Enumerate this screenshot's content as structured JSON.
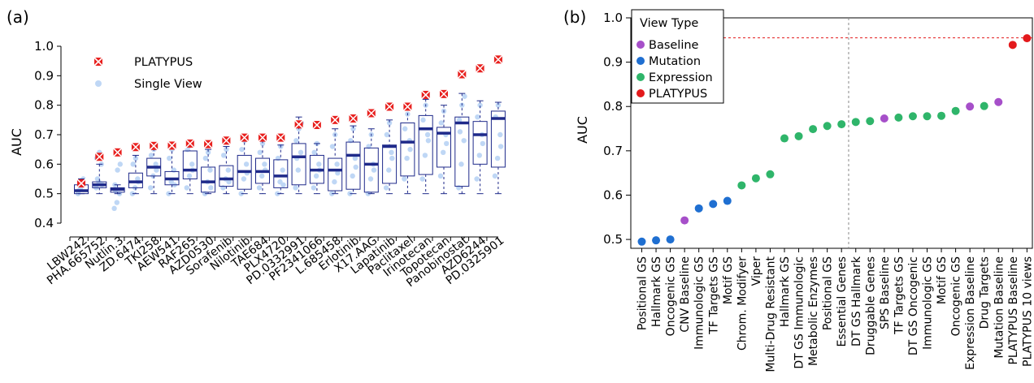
{
  "chart_data": [
    {
      "panel_label": "(a)",
      "type": "box",
      "ylabel": "AUC",
      "xlabel": "",
      "ylim": [
        0.4,
        1.0
      ],
      "yticks": [
        0.4,
        0.5,
        0.6,
        0.7,
        0.8,
        0.9,
        1.0
      ],
      "grid": false,
      "legend_position": "top-left",
      "legend": [
        {
          "label": "PLATYPUS",
          "color": "#e8201e",
          "marker": "x-square"
        },
        {
          "label": "Single View",
          "color": "#bfd7f5",
          "marker": "circle"
        }
      ],
      "box_color": "#1f2a8a",
      "categories": [
        "LBW242",
        "PHA.665752",
        "Nutlin.3",
        "ZD.6474",
        "TKI258",
        "AEW541",
        "RAF265",
        "AZD0530",
        "Sorafenib",
        "Nilotinib",
        "TAE684",
        "PLX4720",
        "PD.0332991",
        "PF2341066",
        "L.685458",
        "Erlotinib",
        "X17.AAG",
        "Lapatinib",
        "Paclitaxel",
        "Irinotecan",
        "Topotecan",
        "Panobinostat",
        "AZD6244",
        "PD.0325901"
      ],
      "platypus": [
        0.535,
        0.625,
        0.64,
        0.658,
        0.662,
        0.663,
        0.67,
        0.668,
        0.68,
        0.69,
        0.69,
        0.69,
        0.735,
        0.733,
        0.75,
        0.755,
        0.773,
        0.795,
        0.795,
        0.835,
        0.838,
        0.905,
        0.925,
        0.955
      ],
      "boxes": [
        {
          "min": 0.5,
          "q1": 0.5,
          "median": 0.51,
          "q3": 0.53,
          "max": 0.55
        },
        {
          "min": 0.5,
          "q1": 0.52,
          "median": 0.53,
          "q3": 0.54,
          "max": 0.6
        },
        {
          "min": 0.5,
          "q1": 0.505,
          "median": 0.515,
          "q3": 0.52,
          "max": 0.53
        },
        {
          "min": 0.5,
          "q1": 0.52,
          "median": 0.54,
          "q3": 0.57,
          "max": 0.63
        },
        {
          "min": 0.5,
          "q1": 0.56,
          "median": 0.59,
          "q3": 0.62,
          "max": 0.67
        },
        {
          "min": 0.5,
          "q1": 0.53,
          "median": 0.55,
          "q3": 0.575,
          "max": 0.66
        },
        {
          "min": 0.5,
          "q1": 0.55,
          "median": 0.58,
          "q3": 0.645,
          "max": 0.68
        },
        {
          "min": 0.5,
          "q1": 0.505,
          "median": 0.54,
          "q3": 0.59,
          "max": 0.65
        },
        {
          "min": 0.5,
          "q1": 0.525,
          "median": 0.55,
          "q3": 0.595,
          "max": 0.66
        },
        {
          "min": 0.5,
          "q1": 0.515,
          "median": 0.575,
          "q3": 0.63,
          "max": 0.69
        },
        {
          "min": 0.5,
          "q1": 0.535,
          "median": 0.575,
          "q3": 0.62,
          "max": 0.68
        },
        {
          "min": 0.5,
          "q1": 0.52,
          "median": 0.56,
          "q3": 0.615,
          "max": 0.665
        },
        {
          "min": 0.5,
          "q1": 0.53,
          "median": 0.625,
          "q3": 0.67,
          "max": 0.76
        },
        {
          "min": 0.5,
          "q1": 0.535,
          "median": 0.58,
          "q3": 0.63,
          "max": 0.67
        },
        {
          "min": 0.5,
          "q1": 0.51,
          "median": 0.58,
          "q3": 0.62,
          "max": 0.72
        },
        {
          "min": 0.5,
          "q1": 0.515,
          "median": 0.63,
          "q3": 0.675,
          "max": 0.73
        },
        {
          "min": 0.5,
          "q1": 0.505,
          "median": 0.6,
          "q3": 0.655,
          "max": 0.72
        },
        {
          "min": 0.5,
          "q1": 0.535,
          "median": 0.66,
          "q3": 0.665,
          "max": 0.75
        },
        {
          "min": 0.5,
          "q1": 0.56,
          "median": 0.675,
          "q3": 0.74,
          "max": 0.79
        },
        {
          "min": 0.5,
          "q1": 0.565,
          "median": 0.72,
          "q3": 0.765,
          "max": 0.82
        },
        {
          "min": 0.5,
          "q1": 0.59,
          "median": 0.705,
          "q3": 0.725,
          "max": 0.8
        },
        {
          "min": 0.5,
          "q1": 0.525,
          "median": 0.74,
          "q3": 0.76,
          "max": 0.84
        },
        {
          "min": 0.5,
          "q1": 0.6,
          "median": 0.7,
          "q3": 0.745,
          "max": 0.815
        },
        {
          "min": 0.5,
          "q1": 0.59,
          "median": 0.755,
          "q3": 0.78,
          "max": 0.81
        }
      ],
      "single_view_points": [
        [
          0.5,
          0.52,
          0.55,
          0.51
        ],
        [
          0.52,
          0.54,
          0.6,
          0.62,
          0.64,
          0.53,
          0.55
        ],
        [
          0.45,
          0.47,
          0.5,
          0.53,
          0.58,
          0.6,
          0.51
        ],
        [
          0.5,
          0.52,
          0.55,
          0.6,
          0.62,
          0.54
        ],
        [
          0.52,
          0.56,
          0.6,
          0.63,
          0.65,
          0.58
        ],
        [
          0.5,
          0.54,
          0.58,
          0.62,
          0.65,
          0.53
        ],
        [
          0.52,
          0.56,
          0.6,
          0.65,
          0.67,
          0.58
        ],
        [
          0.5,
          0.54,
          0.58,
          0.62,
          0.64,
          0.52
        ],
        [
          0.52,
          0.55,
          0.58,
          0.63,
          0.65,
          0.54
        ],
        [
          0.5,
          0.55,
          0.6,
          0.65,
          0.68,
          0.57
        ],
        [
          0.52,
          0.56,
          0.6,
          0.64,
          0.67,
          0.58
        ],
        [
          0.5,
          0.54,
          0.58,
          0.62,
          0.66,
          0.53
        ],
        [
          0.52,
          0.58,
          0.64,
          0.68,
          0.72,
          0.74,
          0.62
        ],
        [
          0.52,
          0.56,
          0.6,
          0.64,
          0.67,
          0.58
        ],
        [
          0.5,
          0.54,
          0.6,
          0.66,
          0.7,
          0.57
        ],
        [
          0.5,
          0.56,
          0.62,
          0.68,
          0.72,
          0.59
        ],
        [
          0.5,
          0.55,
          0.6,
          0.66,
          0.7,
          0.58
        ],
        [
          0.52,
          0.58,
          0.64,
          0.7,
          0.74,
          0.62
        ],
        [
          0.55,
          0.62,
          0.68,
          0.72,
          0.77,
          0.65
        ],
        [
          0.55,
          0.63,
          0.7,
          0.75,
          0.8,
          0.68
        ],
        [
          0.56,
          0.64,
          0.7,
          0.74,
          0.78,
          0.67
        ],
        [
          0.52,
          0.6,
          0.68,
          0.75,
          0.8,
          0.83,
          0.71
        ],
        [
          0.55,
          0.63,
          0.7,
          0.76,
          0.8,
          0.67
        ],
        [
          0.56,
          0.62,
          0.7,
          0.76,
          0.8,
          0.66
        ]
      ]
    },
    {
      "panel_label": "(b)",
      "type": "scatter",
      "ylabel": "AUC",
      "xlabel": "",
      "ylim": [
        0.48,
        1.0
      ],
      "yticks": [
        0.5,
        0.6,
        0.7,
        0.8,
        0.9,
        1.0
      ],
      "grid": false,
      "legend_title": "View Type",
      "legend_position": "top-left",
      "legend": [
        {
          "label": "Baseline",
          "color": "#a64fc9"
        },
        {
          "label": "Mutation",
          "color": "#1f6fd1"
        },
        {
          "label": "Expression",
          "color": "#2fb56a"
        },
        {
          "label": "PLATYPUS",
          "color": "#e31a1c"
        }
      ],
      "reference_line_y": 0.955,
      "divider_after_index": 14,
      "points": [
        {
          "label": "Positional GS",
          "value": 0.495,
          "type": "Mutation"
        },
        {
          "label": "Hallmark GS",
          "value": 0.498,
          "type": "Mutation"
        },
        {
          "label": "Oncogenic GS",
          "value": 0.5,
          "type": "Mutation"
        },
        {
          "label": "CNV Baseline",
          "value": 0.543,
          "type": "Baseline"
        },
        {
          "label": "Immunologic GS",
          "value": 0.57,
          "type": "Mutation"
        },
        {
          "label": "TF Targets GS",
          "value": 0.58,
          "type": "Mutation"
        },
        {
          "label": "Motif GS",
          "value": 0.587,
          "type": "Mutation"
        },
        {
          "label": "Chrom. Modifyer",
          "value": 0.622,
          "type": "Expression"
        },
        {
          "label": "Viper",
          "value": 0.638,
          "type": "Expression"
        },
        {
          "label": "Multi-Drug Resistant",
          "value": 0.647,
          "type": "Expression"
        },
        {
          "label": "Hallmark GS",
          "value": 0.728,
          "type": "Expression"
        },
        {
          "label": "DT GS Immunologic",
          "value": 0.733,
          "type": "Expression"
        },
        {
          "label": "Metabolic Enzymes",
          "value": 0.749,
          "type": "Expression"
        },
        {
          "label": "Positional GS",
          "value": 0.756,
          "type": "Expression"
        },
        {
          "label": "Essential Genes",
          "value": 0.76,
          "type": "Expression"
        },
        {
          "label": "DT GS Hallmark",
          "value": 0.765,
          "type": "Expression"
        },
        {
          "label": "Druggable Genes",
          "value": 0.767,
          "type": "Expression"
        },
        {
          "label": "SPS Baseline",
          "value": 0.773,
          "type": "Baseline"
        },
        {
          "label": "TF Targets GS",
          "value": 0.775,
          "type": "Expression"
        },
        {
          "label": "DT GS Oncogenic",
          "value": 0.778,
          "type": "Expression"
        },
        {
          "label": "Immunologic GS",
          "value": 0.778,
          "type": "Expression"
        },
        {
          "label": "Motif GS",
          "value": 0.779,
          "type": "Expression"
        },
        {
          "label": "Oncogenic GS",
          "value": 0.79,
          "type": "Expression"
        },
        {
          "label": "Expression Baseline",
          "value": 0.8,
          "type": "Baseline"
        },
        {
          "label": "Drug Targets",
          "value": 0.801,
          "type": "Expression"
        },
        {
          "label": "Mutation Baseline",
          "value": 0.81,
          "type": "Baseline"
        },
        {
          "label": "PLATYPUS Baseline",
          "value": 0.939,
          "type": "PLATYPUS"
        },
        {
          "label": "PLATYPUS 10 views",
          "value": 0.954,
          "type": "PLATYPUS"
        }
      ]
    }
  ]
}
